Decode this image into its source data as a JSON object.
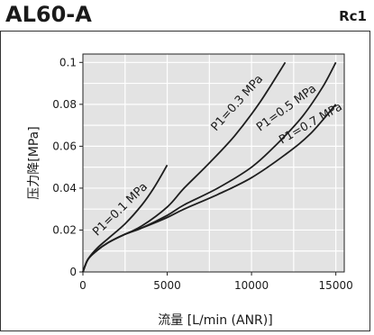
{
  "header": {
    "title": "AL60-A",
    "port": "Rc1"
  },
  "chart_data": {
    "type": "line",
    "title": "AL60-A",
    "xlabel": "流量 [L/min (ANR)]",
    "ylabel": "压力降[MPa]",
    "xlim": [
      0,
      15500
    ],
    "ylim": [
      0,
      0.104
    ],
    "xticks": [
      0,
      5000,
      10000,
      15000
    ],
    "xtick_labels": [
      "0",
      "5000",
      "10000",
      "15000"
    ],
    "yticks": [
      0,
      0.02,
      0.04,
      0.06,
      0.08,
      0.1
    ],
    "ytick_labels": [
      "0",
      "0.02",
      "0.04",
      "0.06",
      "0.08",
      "0.1"
    ],
    "grid": true,
    "series": [
      {
        "name": "P1=0.1 MPa",
        "x": [
          0,
          300,
          800,
          1500,
          2500,
          3500,
          4200,
          5000
        ],
        "y": [
          0,
          0.006,
          0.011,
          0.016,
          0.023,
          0.032,
          0.04,
          0.051
        ]
      },
      {
        "name": "P1=0.3 MPa",
        "x": [
          0,
          300,
          800,
          1500,
          2500,
          3500,
          5000,
          6000,
          7500,
          9000,
          10500,
          12000
        ],
        "y": [
          0,
          0.006,
          0.01,
          0.014,
          0.018,
          0.022,
          0.031,
          0.04,
          0.052,
          0.065,
          0.081,
          0.1
        ]
      },
      {
        "name": "P1=0.5 MPa",
        "x": [
          0,
          300,
          800,
          1500,
          2500,
          3500,
          5000,
          6000,
          8000,
          10000,
          11500,
          13000,
          14200,
          15000
        ],
        "y": [
          0,
          0.006,
          0.01,
          0.014,
          0.018,
          0.021,
          0.027,
          0.032,
          0.04,
          0.05,
          0.061,
          0.074,
          0.088,
          0.1
        ]
      },
      {
        "name": "P1=0.7 MPa",
        "x": [
          0,
          300,
          800,
          1500,
          2500,
          3500,
          5000,
          6000,
          8000,
          10000,
          12000,
          13500,
          15000
        ],
        "y": [
          0,
          0.006,
          0.01,
          0.014,
          0.018,
          0.021,
          0.026,
          0.03,
          0.037,
          0.045,
          0.056,
          0.066,
          0.08
        ]
      }
    ],
    "curve_labels": [
      {
        "text": "P1=0.1 MPa",
        "x": 850,
        "y": 0.017,
        "angle": -44
      },
      {
        "text": "P1=0.3 MPa",
        "x": 7900,
        "y": 0.067,
        "angle": -48
      },
      {
        "text": "P1=0.5 MPa",
        "x": 10500,
        "y": 0.067,
        "angle": -36
      },
      {
        "text": "P1=0.7 MPa",
        "x": 11800,
        "y": 0.061,
        "angle": -30
      }
    ],
    "colors": {
      "plot_background": "#e3e3e3",
      "grid": "#ffffff",
      "line": "#1e1e1e",
      "frame": "#333333"
    }
  }
}
